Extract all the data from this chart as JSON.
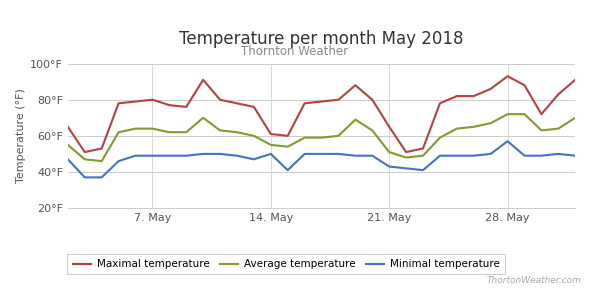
{
  "title": "Temperature per month May 2018",
  "subtitle": "Thornton Weather",
  "ylabel": "Temperature (°F)",
  "watermark_text": "ThortonWeather.com",
  "ylim": [
    20,
    100
  ],
  "yticks": [
    20,
    40,
    60,
    80,
    100
  ],
  "ytick_labels": [
    "20°F",
    "40°F",
    "60°F",
    "80°F",
    "100°F"
  ],
  "xtick_positions": [
    6,
    13,
    20,
    27
  ],
  "xtick_labels": [
    "7. May",
    "14. May",
    "21. May",
    "28. May"
  ],
  "days": [
    1,
    2,
    3,
    4,
    5,
    6,
    7,
    8,
    9,
    10,
    11,
    12,
    13,
    14,
    15,
    16,
    17,
    18,
    19,
    20,
    21,
    22,
    23,
    24,
    25,
    26,
    27,
    28,
    29,
    30,
    31
  ],
  "max_temp": [
    65,
    51,
    53,
    78,
    79,
    80,
    77,
    76,
    91,
    80,
    78,
    76,
    61,
    60,
    78,
    79,
    80,
    88,
    80,
    65,
    51,
    53,
    78,
    82,
    82,
    86,
    93,
    88,
    72,
    83,
    91
  ],
  "avg_temp": [
    55,
    47,
    46,
    62,
    64,
    64,
    62,
    62,
    70,
    63,
    62,
    60,
    55,
    54,
    59,
    59,
    60,
    69,
    63,
    51,
    48,
    49,
    59,
    64,
    65,
    67,
    72,
    72,
    63,
    64,
    70
  ],
  "min_temp": [
    47,
    37,
    37,
    46,
    49,
    49,
    49,
    49,
    50,
    50,
    49,
    47,
    50,
    41,
    50,
    50,
    50,
    49,
    49,
    43,
    42,
    41,
    49,
    49,
    49,
    50,
    57,
    49,
    49,
    50,
    49
  ],
  "max_color": "#b94040",
  "avg_color": "#7f9c2e",
  "min_color": "#4472c4",
  "bg_color": "#ffffff",
  "grid_color": "#cccccc",
  "line_width": 1.5,
  "legend_labels": [
    "Maximal temperature",
    "Average temperature",
    "Minimal temperature"
  ],
  "title_fontsize": 12,
  "subtitle_fontsize": 8.5,
  "axis_fontsize": 8,
  "tick_color": "#555555"
}
